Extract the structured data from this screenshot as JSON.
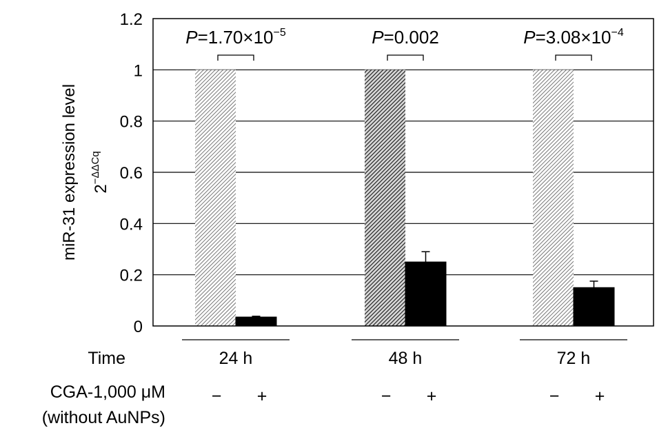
{
  "chart_data": {
    "type": "bar",
    "ylabel": "miR-31 expression level",
    "ylabel_sub": "2",
    "ylabel_sub_exp": "−ΔΔCq",
    "ylim": [
      0,
      1.2
    ],
    "yticks": [
      "0",
      "0.2",
      "0.4",
      "0.6",
      "0.8",
      "1",
      "1.2"
    ],
    "grid": true,
    "categories": [
      "24 h",
      "48 h",
      "72 h"
    ],
    "series": [
      {
        "treatment": "−",
        "values": [
          1.0,
          1.0,
          1.0
        ],
        "errors": [
          0,
          0,
          0
        ],
        "pattern": "light-hatch"
      },
      {
        "treatment": "+",
        "values": [
          0.035,
          0.25,
          0.15
        ],
        "errors": [
          0.003,
          0.04,
          0.025
        ],
        "color": "#000000"
      }
    ],
    "significance": [
      {
        "category": "24 h",
        "italic": "P",
        "text": "=1.70×10",
        "exp": "−5"
      },
      {
        "category": "48 h",
        "italic": "P",
        "text": "=0.002",
        "exp": ""
      },
      {
        "category": "72 h",
        "italic": "P",
        "text": "=3.08×10",
        "exp": "−4"
      }
    ],
    "rows": {
      "time_label": "Time",
      "treatment_label_line1": "CGA-1,000 μM",
      "treatment_label_line2": "(without AuNPs)",
      "minus_sign": "−",
      "plus_sign": "+"
    }
  }
}
